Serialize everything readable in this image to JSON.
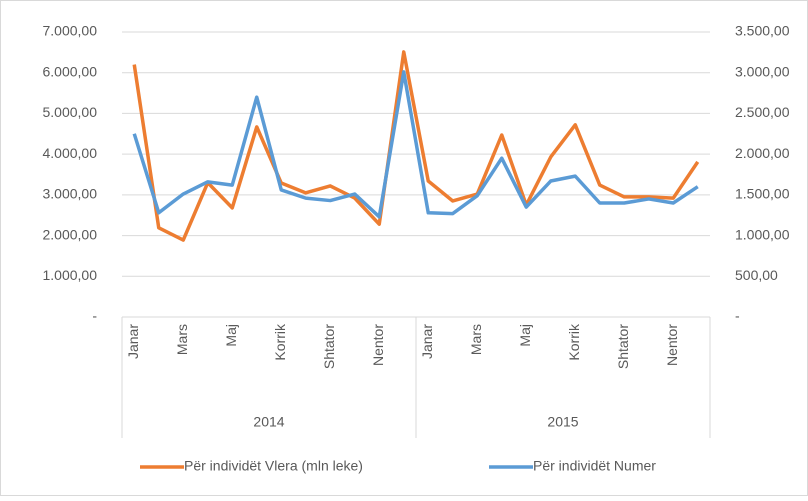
{
  "chart_data": {
    "type": "line",
    "categories": [
      "Janar",
      null,
      "Mars",
      null,
      "Maj",
      null,
      "Korrik",
      null,
      "Shtator",
      null,
      "Nentor",
      null,
      "Janar",
      null,
      "Mars",
      null,
      "Maj",
      null,
      "Korrik",
      null,
      "Shtator",
      null,
      "Nentor",
      null
    ],
    "groups": [
      "2014",
      "2015"
    ],
    "series": [
      {
        "name": "Për individët Vlera (mln leke)",
        "color": "#ed7d31",
        "values": [
          6200,
          2190,
          1890,
          3300,
          2680,
          4670,
          3290,
          3050,
          3220,
          2920,
          2280,
          6510,
          3340,
          2850,
          3020,
          4470,
          2750,
          3930,
          4720,
          3240,
          2950,
          2950,
          2920,
          3810
        ]
      },
      {
        "name": "Për individët Numer",
        "color": "#5b9bd5",
        "axis": "y2",
        "values": [
          2250,
          1280,
          1510,
          1660,
          1620,
          2700,
          1560,
          1460,
          1430,
          1510,
          1230,
          3010,
          1280,
          1270,
          1490,
          1950,
          1350,
          1670,
          1730,
          1400,
          1400,
          1450,
          1400,
          1600
        ]
      }
    ],
    "ylim": [
      0,
      7000
    ],
    "yticks": [
      {
        "value": 0,
        "label": "-"
      },
      {
        "value": 1000,
        "label": "1.000,00"
      },
      {
        "value": 2000,
        "label": "2.000,00"
      },
      {
        "value": 3000,
        "label": "3.000,00"
      },
      {
        "value": 4000,
        "label": "4.000,00"
      },
      {
        "value": 5000,
        "label": "5.000,00"
      },
      {
        "value": 6000,
        "label": "6.000,00"
      },
      {
        "value": 7000,
        "label": "7.000,00"
      }
    ],
    "y2lim": [
      0,
      3500
    ],
    "y2ticks": [
      {
        "value": 0,
        "label": "-"
      },
      {
        "value": 500,
        "label": "500,00"
      },
      {
        "value": 1000,
        "label": "1.000,00"
      },
      {
        "value": 1500,
        "label": "1.500,00"
      },
      {
        "value": 2000,
        "label": "2.000,00"
      },
      {
        "value": 2500,
        "label": "2.500,00"
      },
      {
        "value": 3000,
        "label": "3.000,00"
      },
      {
        "value": 3500,
        "label": "3.500,00"
      }
    ],
    "legend": "bottom"
  }
}
